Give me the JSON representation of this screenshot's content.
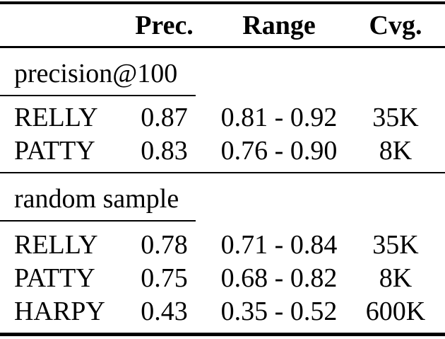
{
  "colors": {
    "background": "#ffffff",
    "text": "#000000",
    "rule": "#000000"
  },
  "table": {
    "columns": {
      "name": "",
      "prec": "Prec.",
      "range": "Range",
      "cvg": "Cvg."
    },
    "sections": [
      {
        "label": "precision@100",
        "rows": [
          {
            "name": "RELLY",
            "prec": "0.87",
            "range": "0.81 - 0.92",
            "cvg": "35K"
          },
          {
            "name": "PATTY",
            "prec": "0.83",
            "range": "0.76 - 0.90",
            "cvg": "8K"
          }
        ]
      },
      {
        "label": "random sample",
        "rows": [
          {
            "name": "RELLY",
            "prec": "0.78",
            "range": "0.71 - 0.84",
            "cvg": "35K"
          },
          {
            "name": "PATTY",
            "prec": "0.75",
            "range": "0.68 - 0.82",
            "cvg": "8K"
          },
          {
            "name": "HARPY",
            "prec": "0.43",
            "range": "0.35 - 0.52",
            "cvg": "600K"
          }
        ]
      }
    ]
  }
}
